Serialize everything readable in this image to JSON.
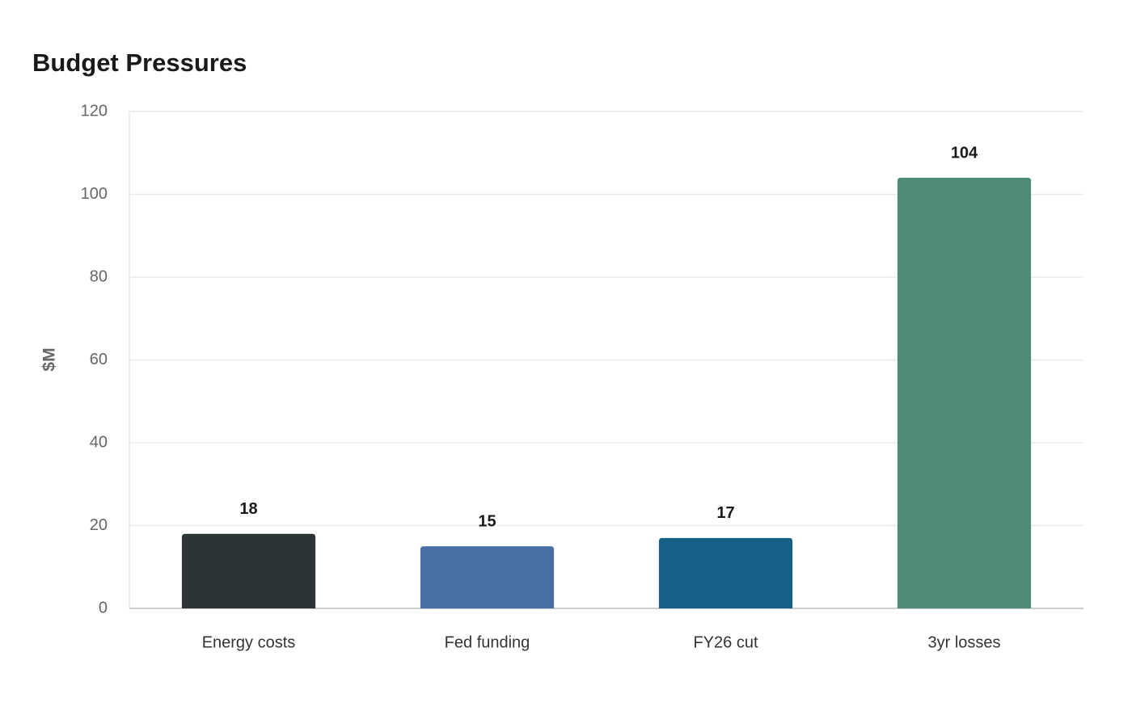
{
  "chart_data": {
    "type": "bar",
    "title": "Budget Pressures",
    "y_label": "$M",
    "categories": [
      "Energy costs",
      "Fed funding",
      "FY26 cut",
      "3yr losses"
    ],
    "values": [
      18,
      15,
      17,
      104
    ],
    "colors": [
      "#2d3436",
      "#4a6fa5",
      "#166088",
      "#4f8a78"
    ],
    "ylim": [
      0,
      120
    ],
    "yticks": [
      0,
      20,
      40,
      60,
      80,
      100,
      120
    ],
    "grid": true
  }
}
